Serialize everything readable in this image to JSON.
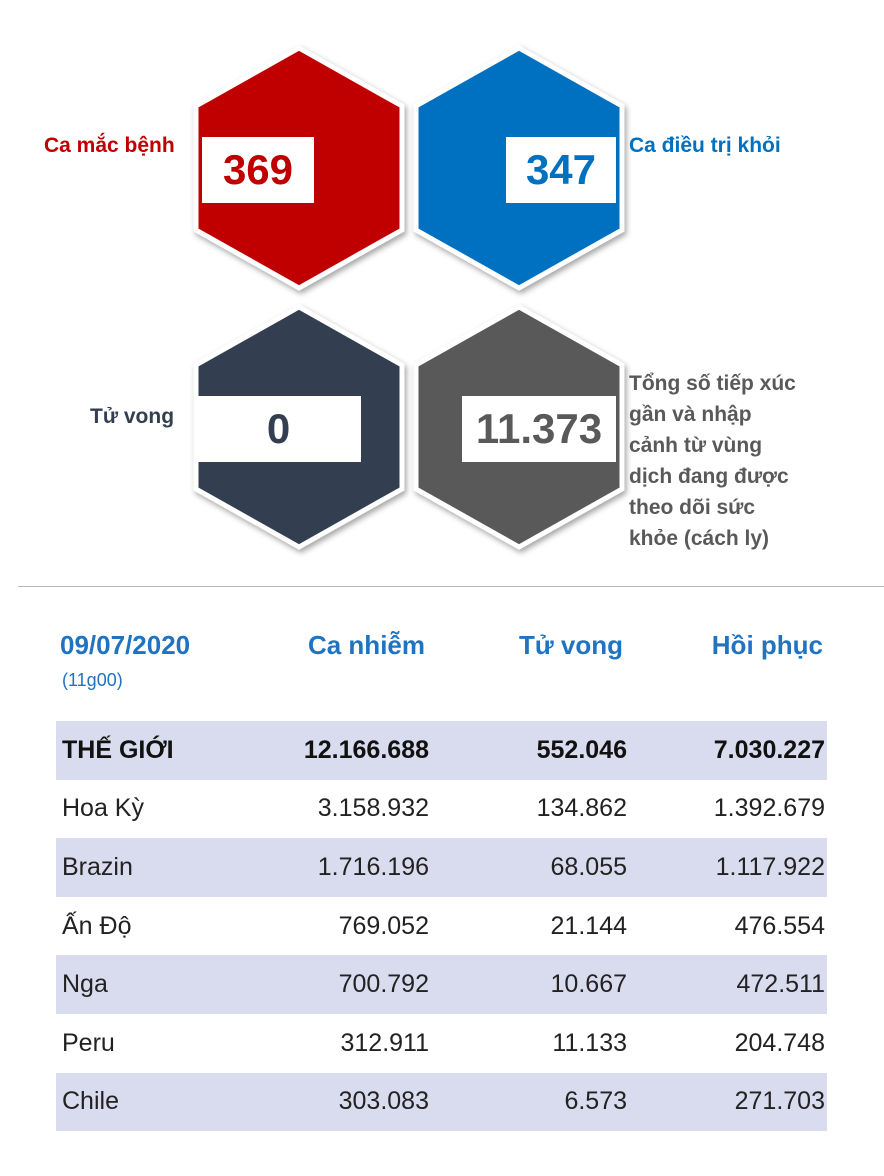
{
  "stats": {
    "cases": {
      "value": "369",
      "label": "Ca mắc bệnh",
      "color": "#c00000"
    },
    "recovered": {
      "value": "347",
      "label": "Ca điều trị khỏi",
      "color": "#0070c0"
    },
    "deaths": {
      "value": "0",
      "label": "Tử vong",
      "color": "#333f50"
    },
    "monitored": {
      "value": "11.373",
      "label_lines": [
        "Tổng số tiếp xúc",
        "gần và nhập",
        "cảnh từ vùng",
        "dịch đang được",
        "theo dõi sức",
        "khỏe (cách ly)"
      ],
      "color": "#595959"
    }
  },
  "table": {
    "date": "09/07/2020",
    "time": "(11g00)",
    "headers": [
      "Ca nhiễm",
      "Tử vong",
      "Hồi phục"
    ],
    "rows": [
      {
        "name": "THẾ GIỚI",
        "cases": "12.166.688",
        "deaths": "552.046",
        "recovered": "7.030.227"
      },
      {
        "name": "Hoa Kỳ",
        "cases": "3.158.932",
        "deaths": "134.862",
        "recovered": "1.392.679"
      },
      {
        "name": "Brazin",
        "cases": "1.716.196",
        "deaths": "68.055",
        "recovered": "1.117.922"
      },
      {
        "name": "Ấn Độ",
        "cases": "769.052",
        "deaths": "21.144",
        "recovered": "476.554"
      },
      {
        "name": "Nga",
        "cases": "700.792",
        "deaths": "10.667",
        "recovered": "472.511"
      },
      {
        "name": "Peru",
        "cases": "312.911",
        "deaths": "11.133",
        "recovered": "204.748"
      },
      {
        "name": "Chile",
        "cases": "303.083",
        "deaths": "6.573",
        "recovered": "271.703"
      }
    ]
  }
}
